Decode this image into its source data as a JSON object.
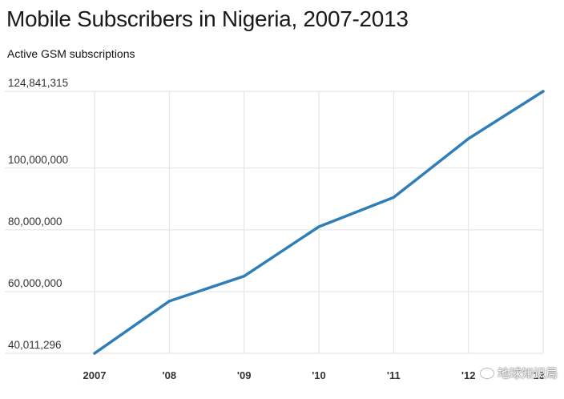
{
  "chart_data": {
    "type": "line",
    "title": "Mobile Subscribers in Nigeria, 2007-2013",
    "subtitle": "Active GSM subscriptions",
    "x": [
      "2007",
      "'08",
      "'09",
      "'10",
      "'11",
      "'12",
      "'13"
    ],
    "series": [
      {
        "values": [
          40011296,
          56900000,
          65000000,
          81000000,
          90500000,
          109500000,
          124841315
        ]
      }
    ],
    "y_ticks": [
      40011296,
      60000000,
      80000000,
      100000000,
      124841315
    ],
    "y_tick_labels": [
      "40,011,296",
      "60,000,000",
      "80,000,000",
      "100,000,000",
      "124,841,315"
    ],
    "ylim": [
      40011296,
      124841315
    ],
    "xlabel": "",
    "ylabel": "",
    "grid": true,
    "line_color": "#2f7eb8",
    "grid_color": "#e2e2e2"
  },
  "watermark": {
    "text": "地球知识局"
  }
}
